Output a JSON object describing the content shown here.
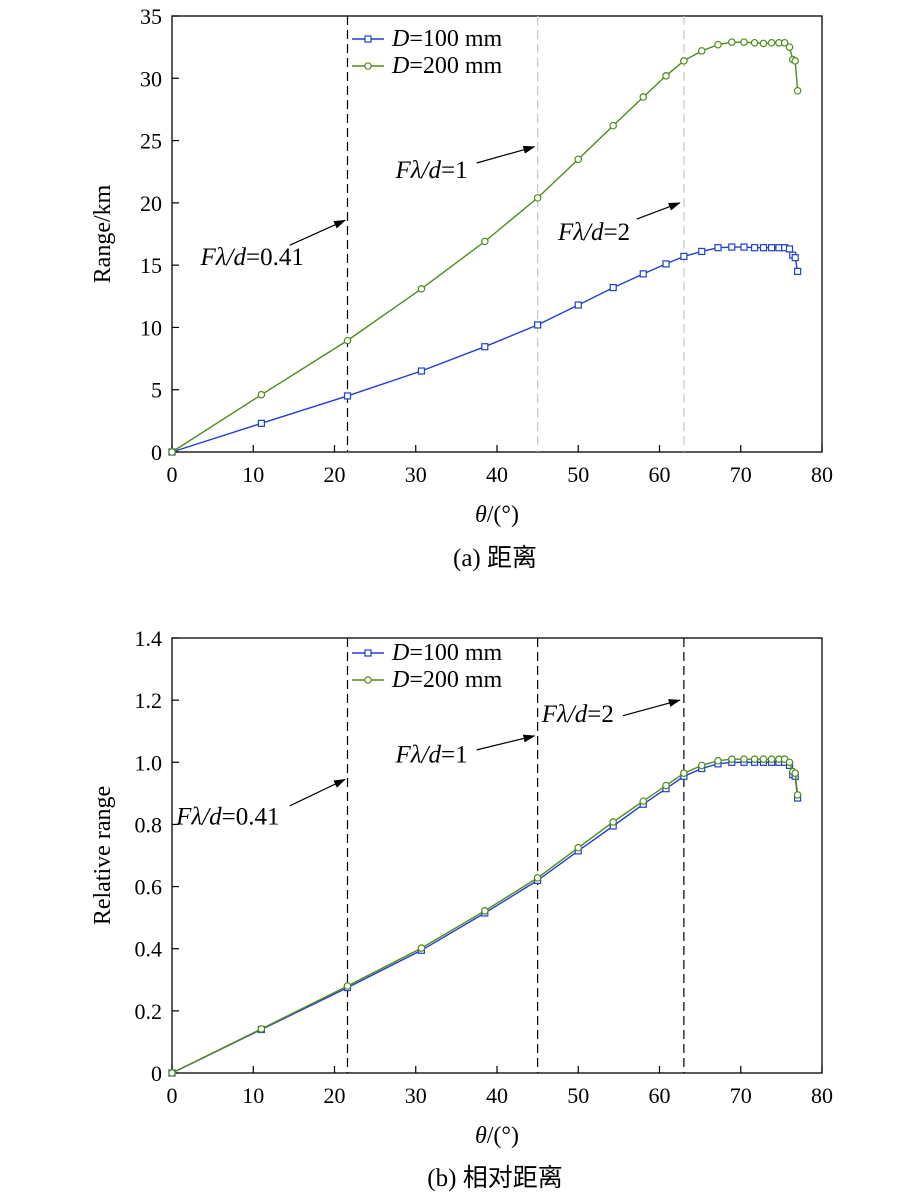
{
  "chart_data": [
    {
      "id": "a",
      "type": "line",
      "caption": "(a) 距离",
      "xlabel_var": "θ",
      "xlabel_unit": "/(°)",
      "ylabel": "Range/km",
      "xlim": [
        0,
        80
      ],
      "ylim": [
        0,
        35
      ],
      "xticks": [
        0,
        10,
        20,
        30,
        40,
        50,
        60,
        70,
        80
      ],
      "yticks": [
        0,
        5,
        10,
        15,
        20,
        25,
        30,
        35
      ],
      "grid": false,
      "legend_position": "top-left",
      "series": [
        {
          "name_var": "D",
          "name_rest": "=100 mm",
          "marker": "square",
          "color": "#1f3fd0",
          "x": [
            0,
            11,
            21.6,
            30.7,
            38.5,
            45,
            50,
            54.3,
            58,
            60.8,
            63,
            65.2,
            67.2,
            68.9,
            70.4,
            71.7,
            72.8,
            73.8,
            74.7,
            75.4,
            76,
            76.4,
            76.7,
            77
          ],
          "y": [
            0,
            2.3,
            4.5,
            6.5,
            8.45,
            10.2,
            11.8,
            13.2,
            14.3,
            15.1,
            15.7,
            16.1,
            16.4,
            16.45,
            16.45,
            16.4,
            16.4,
            16.4,
            16.4,
            16.4,
            16.3,
            15.8,
            15.6,
            14.5
          ]
        },
        {
          "name_var": "D",
          "name_rest": "=200 mm",
          "marker": "circle",
          "color": "#4e8c1a",
          "x": [
            0,
            11,
            21.6,
            30.7,
            38.5,
            45,
            50,
            54.3,
            58,
            60.8,
            63,
            65.2,
            67.2,
            68.9,
            70.4,
            71.7,
            72.8,
            73.8,
            74.7,
            75.4,
            76,
            76.4,
            76.7,
            77
          ],
          "y": [
            0,
            4.6,
            8.95,
            13.1,
            16.9,
            20.4,
            23.5,
            26.2,
            28.5,
            30.2,
            31.4,
            32.2,
            32.7,
            32.9,
            32.9,
            32.85,
            32.8,
            32.85,
            32.85,
            32.85,
            32.5,
            31.5,
            31.4,
            29.0
          ]
        }
      ],
      "vlines": [
        {
          "x": 21.6,
          "color": "#000000"
        },
        {
          "x": 45,
          "color": "#c8c8c8"
        },
        {
          "x": 63,
          "color": "#c8c8c8"
        }
      ],
      "annotations": [
        {
          "pre": "Fλ/",
          "var": "d",
          "post": "=0.41",
          "text_x": 3.5,
          "text_y": 15.0,
          "arrow_from": [
            14.5,
            16.6
          ],
          "arrow_to": [
            21.3,
            18.6
          ]
        },
        {
          "pre": "Fλ/",
          "var": "d",
          "post": "=1",
          "text_x": 27.5,
          "text_y": 22.0,
          "arrow_from": [
            37.5,
            23.2
          ],
          "arrow_to": [
            44.6,
            24.5
          ]
        },
        {
          "pre": "Fλ/",
          "var": "d",
          "post": "=2",
          "text_x": 47.5,
          "text_y": 17.0,
          "arrow_from": [
            57.2,
            18.7
          ],
          "arrow_to": [
            62.5,
            20.0
          ]
        }
      ]
    },
    {
      "id": "b",
      "type": "line",
      "caption": "(b) 相对距离",
      "xlabel_var": "θ",
      "xlabel_unit": "/(°)",
      "ylabel": "Relative range",
      "xlim": [
        0,
        80
      ],
      "ylim": [
        0,
        1.4
      ],
      "xticks": [
        0,
        10,
        20,
        30,
        40,
        50,
        60,
        70,
        80
      ],
      "yticks": [
        "0",
        "0.2",
        "0.4",
        "0.6",
        "0.8",
        "1.0",
        "1.2",
        "1.4"
      ],
      "grid": false,
      "legend_position": "top-left",
      "series": [
        {
          "name_var": "D",
          "name_rest": "=100 mm",
          "marker": "square",
          "color": "#1f3fd0",
          "x": [
            0,
            11,
            21.6,
            30.7,
            38.5,
            45,
            50,
            54.3,
            58,
            60.8,
            63,
            65.2,
            67.2,
            68.9,
            70.4,
            71.7,
            72.8,
            73.8,
            74.7,
            75.4,
            76,
            76.4,
            76.7,
            77
          ],
          "y": [
            0,
            0.14,
            0.275,
            0.395,
            0.515,
            0.62,
            0.715,
            0.795,
            0.865,
            0.915,
            0.955,
            0.98,
            0.995,
            1.0,
            1.0,
            1.0,
            1.0,
            1.0,
            1.0,
            1.0,
            0.99,
            0.96,
            0.955,
            0.885
          ]
        },
        {
          "name_var": "D",
          "name_rest": "=200 mm",
          "marker": "circle",
          "color": "#4e8c1a",
          "x": [
            0,
            11,
            21.6,
            30.7,
            38.5,
            45,
            50,
            54.3,
            58,
            60.8,
            63,
            65.2,
            67.2,
            68.9,
            70.4,
            71.7,
            72.8,
            73.8,
            74.7,
            75.4,
            76,
            76.4,
            76.7,
            77
          ],
          "y": [
            0,
            0.142,
            0.28,
            0.402,
            0.522,
            0.628,
            0.725,
            0.808,
            0.875,
            0.925,
            0.965,
            0.99,
            1.005,
            1.01,
            1.01,
            1.01,
            1.01,
            1.01,
            1.01,
            1.01,
            1.0,
            0.97,
            0.965,
            0.895
          ]
        }
      ],
      "vlines": [
        {
          "x": 21.6,
          "color": "#000000"
        },
        {
          "x": 45,
          "color": "#000000"
        },
        {
          "x": 63,
          "color": "#000000"
        }
      ],
      "annotations": [
        {
          "pre": "Fλ/",
          "var": "d",
          "post": "=0.41",
          "text_x": 0.5,
          "text_y": 0.8,
          "arrow_from": [
            14.5,
            0.86
          ],
          "arrow_to": [
            21.3,
            0.945
          ]
        },
        {
          "pre": "Fλ/",
          "var": "d",
          "post": "=1",
          "text_x": 27.5,
          "text_y": 1.0,
          "arrow_from": [
            37.5,
            1.04
          ],
          "arrow_to": [
            44.6,
            1.085
          ]
        },
        {
          "pre": "Fλ/",
          "var": "d",
          "post": "=2",
          "text_x": 45.5,
          "text_y": 1.13,
          "arrow_from": [
            55.5,
            1.15
          ],
          "arrow_to": [
            62.5,
            1.2
          ]
        }
      ]
    }
  ]
}
